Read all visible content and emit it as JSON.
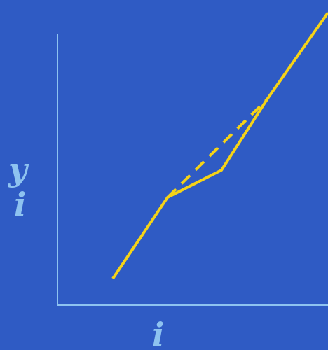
{
  "diagram": {
    "background_color": "#2f5bc4",
    "axis_color": "#8ec3f0",
    "line_color": "#f5d317",
    "y_label_top": "y",
    "y_label_bottom": "i",
    "x_label": "i",
    "polyline_style": "solid",
    "chord_style": "dashed"
  }
}
